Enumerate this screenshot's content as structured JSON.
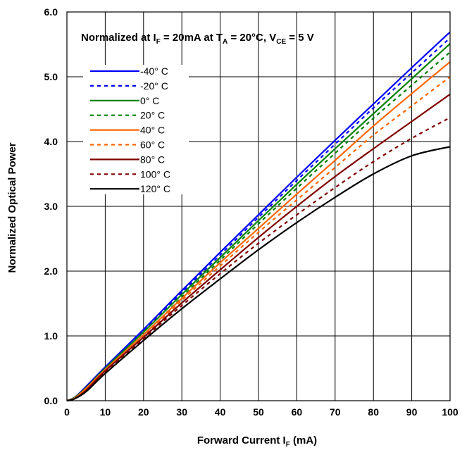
{
  "chart_data": {
    "type": "line",
    "xlabel_main": "Forward Current I",
    "xlabel_sub": "F",
    "xlabel_tail": " (mA)",
    "ylabel": "Normalized Optical Power",
    "annotation": {
      "p1": "Normalized at I",
      "s1": "F",
      "p2": " = 20mA at T",
      "s2": "A",
      "p3": " = 20°C, V",
      "s3": "CE",
      "p4": " = 5 V"
    },
    "xlim": [
      0,
      100
    ],
    "ylim": [
      0,
      6
    ],
    "xticks": [
      0,
      10,
      20,
      30,
      40,
      50,
      60,
      70,
      80,
      90,
      100
    ],
    "yticks": [
      0,
      1,
      2,
      3,
      4,
      5,
      6
    ],
    "x_tick_labels": [
      "0",
      "10",
      "20",
      "30",
      "40",
      "50",
      "60",
      "70",
      "80",
      "90",
      "100"
    ],
    "y_tick_labels": [
      "0.0",
      "1.0",
      "2.0",
      "3.0",
      "4.0",
      "5.0",
      "6.0"
    ],
    "grid": true,
    "legend_position": "top-left",
    "x": [
      0,
      2,
      5,
      10,
      20,
      30,
      40,
      50,
      60,
      70,
      80,
      90,
      100
    ],
    "series": [
      {
        "name": "-40° C",
        "color": "#0000ff",
        "dash": "solid",
        "values": [
          0,
          0.05,
          0.22,
          0.52,
          1.1,
          1.7,
          2.29,
          2.87,
          3.45,
          4.02,
          4.58,
          5.14,
          5.69
        ]
      },
      {
        "name": "-20° C",
        "color": "#0000ff",
        "dash": "dashed",
        "values": [
          0,
          0.05,
          0.21,
          0.51,
          1.08,
          1.67,
          2.25,
          2.83,
          3.4,
          3.96,
          4.52,
          5.06,
          5.6
        ]
      },
      {
        "name": "0° C",
        "color": "#008000",
        "dash": "solid",
        "values": [
          0,
          0.05,
          0.2,
          0.5,
          1.06,
          1.64,
          2.21,
          2.78,
          3.34,
          3.89,
          4.43,
          4.97,
          5.51
        ]
      },
      {
        "name": "20° C",
        "color": "#008000",
        "dash": "dashed",
        "values": [
          0,
          0.04,
          0.2,
          0.49,
          1.0,
          1.6,
          2.17,
          2.73,
          3.28,
          3.82,
          4.36,
          4.87,
          5.38
        ]
      },
      {
        "name": "40° C",
        "color": "#ff6600",
        "dash": "solid",
        "values": [
          0,
          0.04,
          0.19,
          0.48,
          1.02,
          1.58,
          2.13,
          2.66,
          3.19,
          3.71,
          4.24,
          4.74,
          5.23
        ]
      },
      {
        "name": "60° C",
        "color": "#ff6600",
        "dash": "dashed",
        "values": [
          0,
          0.04,
          0.18,
          0.47,
          1.0,
          1.55,
          2.08,
          2.6,
          3.1,
          3.6,
          4.1,
          4.55,
          5.0
        ]
      },
      {
        "name": "80° C",
        "color": "#800000",
        "dash": "solid",
        "values": [
          0,
          0.03,
          0.16,
          0.46,
          0.98,
          1.51,
          2.02,
          2.52,
          3.0,
          3.46,
          3.89,
          4.31,
          4.73
        ]
      },
      {
        "name": "100° C",
        "color": "#800000",
        "dash": "dashed",
        "values": [
          0,
          0.03,
          0.15,
          0.44,
          0.96,
          1.47,
          1.96,
          2.43,
          2.87,
          3.29,
          3.69,
          4.05,
          4.37
        ]
      },
      {
        "name": "120° C",
        "color": "#000000",
        "dash": "solid",
        "values": [
          0,
          0.03,
          0.14,
          0.42,
          0.93,
          1.42,
          1.88,
          2.33,
          2.75,
          3.14,
          3.5,
          3.78,
          3.92
        ]
      }
    ]
  }
}
